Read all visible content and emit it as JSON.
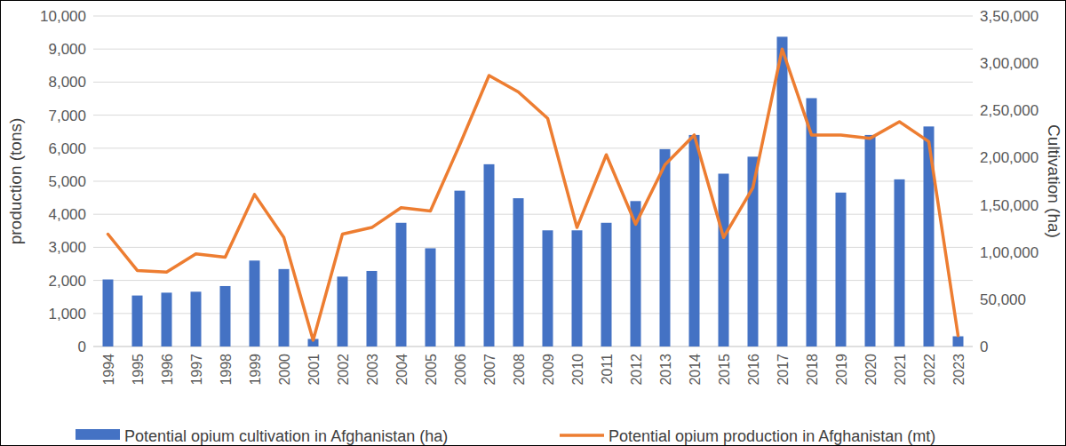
{
  "chart_data": {
    "type": "bar",
    "ylabel": "production (tons)",
    "y2label": "Cultivation (ha)",
    "categories": [
      "1994",
      "1995",
      "1996",
      "1997",
      "1998",
      "1999",
      "2000",
      "2001",
      "2002",
      "2003",
      "2004",
      "2005",
      "2006",
      "2007",
      "2008",
      "2009",
      "2010",
      "2011",
      "2012",
      "2013",
      "2014",
      "2015",
      "2016",
      "2017",
      "2018",
      "2019",
      "2020",
      "2021",
      "2022",
      "2023"
    ],
    "series": [
      {
        "name": "Potential opium cultivation in Afghanistan (ha)",
        "type": "bar",
        "color": "#4472c4",
        "axis": "y2",
        "values": [
          71000,
          54000,
          57000,
          58000,
          64000,
          91000,
          82000,
          8000,
          74000,
          80000,
          131000,
          104000,
          165000,
          193000,
          157000,
          123000,
          123000,
          131000,
          154000,
          209000,
          224000,
          183000,
          201000,
          328000,
          263000,
          163000,
          224000,
          177000,
          233000,
          10800
        ]
      },
      {
        "name": "Potential opium production in Afghanistan (mt)",
        "type": "line",
        "color": "#ed7d31",
        "axis": "y",
        "values": [
          3400,
          2300,
          2250,
          2800,
          2700,
          4600,
          3300,
          190,
          3400,
          3600,
          4200,
          4100,
          6100,
          8200,
          7700,
          6900,
          3600,
          5800,
          3700,
          5500,
          6400,
          3300,
          4800,
          9000,
          6400,
          6400,
          6300,
          6800,
          6200,
          330
        ]
      }
    ],
    "ylim": [
      0,
      10000
    ],
    "yticks": [
      0,
      {
        "value": 1000,
        "label": "1,000"
      },
      {
        "value": 2000,
        "label": "2,000"
      },
      {
        "value": 3000,
        "label": "3,000"
      },
      {
        "value": 4000,
        "label": "4,000"
      },
      {
        "value": 5000,
        "label": "5,000"
      },
      {
        "value": 6000,
        "label": "6,000"
      },
      {
        "value": 7000,
        "label": "7,000"
      },
      {
        "value": 8000,
        "label": "8,000"
      },
      {
        "value": 9000,
        "label": "9,000"
      },
      {
        "value": 10000,
        "label": "10,000"
      }
    ],
    "y2lim": [
      0,
      350000
    ],
    "y2ticks": [
      0,
      {
        "value": 50000,
        "label": "50,000"
      },
      {
        "value": 100000,
        "label": "1,00,000"
      },
      {
        "value": 150000,
        "label": "1,50,000"
      },
      {
        "value": 200000,
        "label": "2,00,000"
      },
      {
        "value": 250000,
        "label": "2,50,000"
      },
      {
        "value": 300000,
        "label": "3,00,000"
      },
      {
        "value": 350000,
        "label": "3,50,000"
      }
    ],
    "grid": true,
    "legend": "bottom"
  }
}
